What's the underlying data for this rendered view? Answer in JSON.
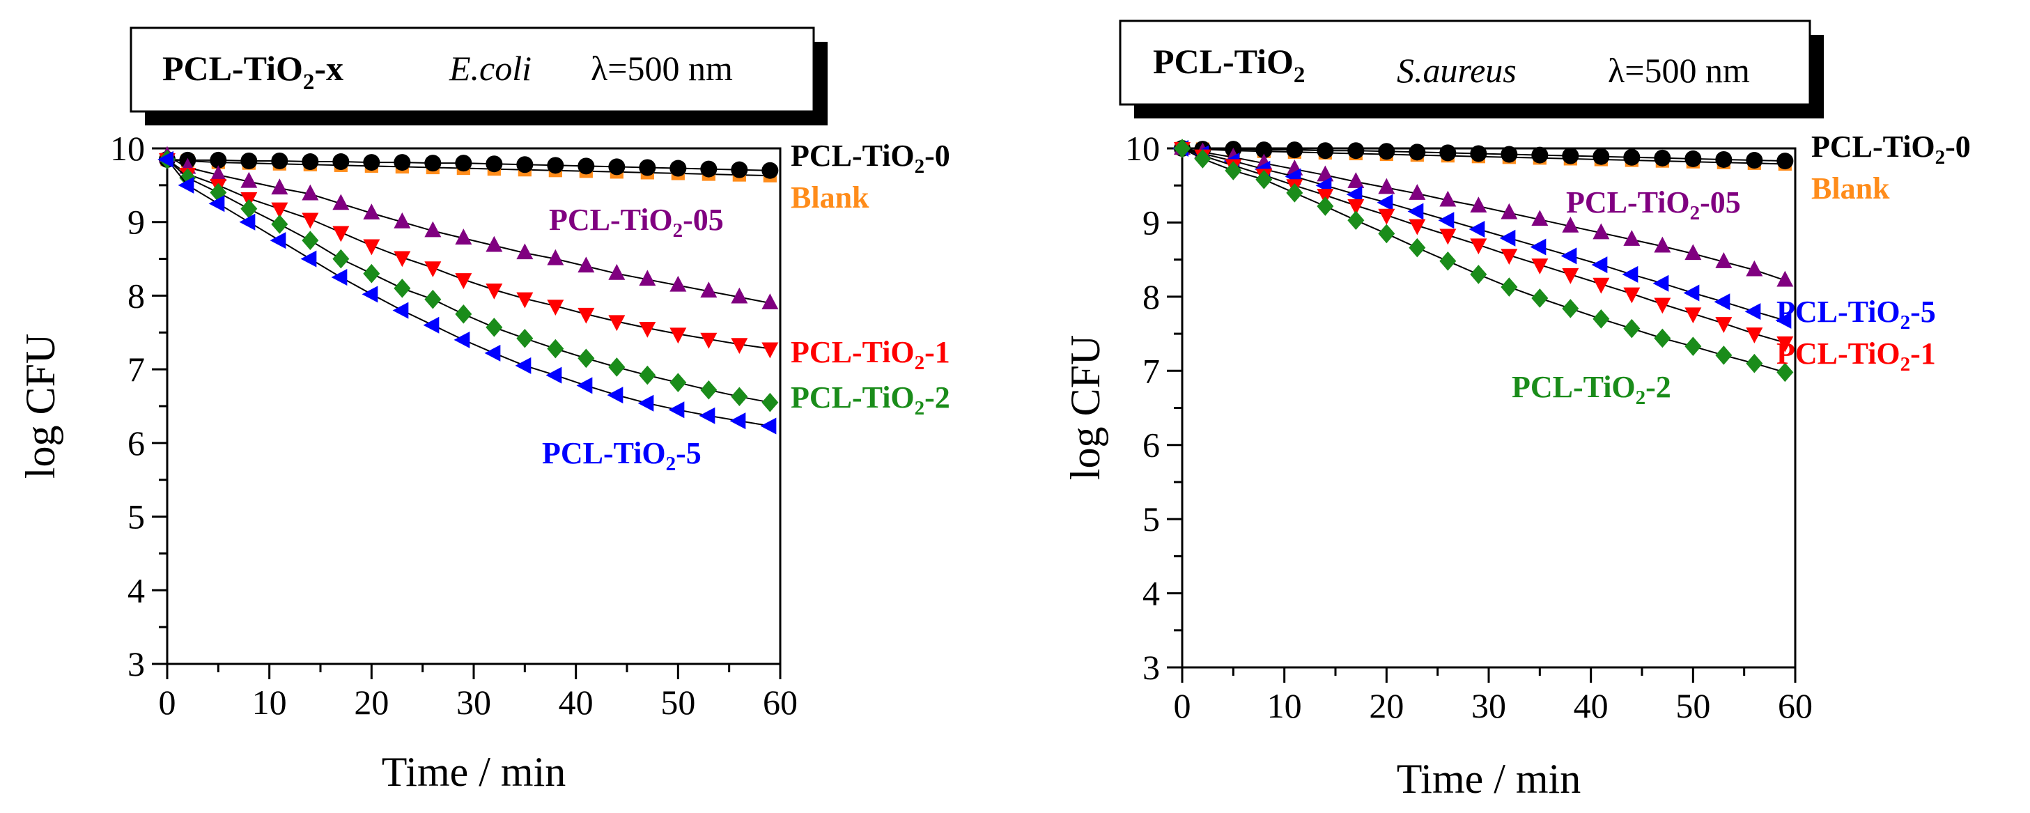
{
  "chart_data": [
    {
      "type": "line",
      "title": "PCL-TiO2-x",
      "title_parts": {
        "name_main": "PCL-TiO",
        "name_sub": "2",
        "name_suffix": "-x",
        "organism": "E.coli",
        "wavelength": "λ=500 nm"
      },
      "xlabel": "Time / min",
      "ylabel": "log CFU",
      "xlim": [
        0,
        60
      ],
      "ylim": [
        3,
        10
      ],
      "x_ticks": [
        "0",
        "10",
        "20",
        "30",
        "40",
        "50",
        "60"
      ],
      "y_ticks": [
        "3",
        "4",
        "5",
        "6",
        "7",
        "8",
        "9",
        "10"
      ],
      "x": [
        0,
        2,
        5,
        8,
        11,
        14,
        17,
        20,
        23,
        26,
        29,
        32,
        35,
        38,
        41,
        44,
        47,
        50,
        53,
        56,
        59
      ],
      "series": [
        {
          "name": "Blank",
          "label": {
            "main": "Blank",
            "sub": "",
            "suffix": ""
          },
          "color": "#ff8c1a",
          "marker": "square",
          "values": [
            9.85,
            9.83,
            9.81,
            9.8,
            9.79,
            9.78,
            9.77,
            9.76,
            9.75,
            9.74,
            9.73,
            9.72,
            9.71,
            9.7,
            9.69,
            9.68,
            9.67,
            9.66,
            9.65,
            9.64,
            9.63
          ]
        },
        {
          "name": "PCL-TiO2-0",
          "label": {
            "main": "PCL-TiO",
            "sub": "2",
            "suffix": "-0"
          },
          "color": "#000000",
          "marker": "circle",
          "values": [
            9.85,
            9.84,
            9.84,
            9.83,
            9.83,
            9.82,
            9.82,
            9.81,
            9.81,
            9.8,
            9.8,
            9.79,
            9.78,
            9.77,
            9.76,
            9.75,
            9.74,
            9.73,
            9.72,
            9.71,
            9.7
          ]
        },
        {
          "name": "PCL-TiO2-05",
          "label": {
            "main": "PCL-TiO",
            "sub": "2",
            "suffix": "-05"
          },
          "color": "#800080",
          "marker": "triangle-up",
          "values": [
            9.9,
            9.74,
            9.64,
            9.55,
            9.46,
            9.38,
            9.25,
            9.12,
            9.0,
            8.88,
            8.78,
            8.68,
            8.58,
            8.5,
            8.4,
            8.3,
            8.22,
            8.14,
            8.06,
            7.98,
            7.9
          ]
        },
        {
          "name": "PCL-TiO2-1",
          "label": {
            "main": "PCL-TiO",
            "sub": "2",
            "suffix": "-1"
          },
          "color": "#ff0000",
          "marker": "triangle-down",
          "values": [
            9.85,
            9.65,
            9.5,
            9.32,
            9.18,
            9.04,
            8.86,
            8.68,
            8.52,
            8.38,
            8.22,
            8.08,
            7.96,
            7.86,
            7.75,
            7.65,
            7.56,
            7.48,
            7.41,
            7.34,
            7.28
          ]
        },
        {
          "name": "PCL-TiO2-2",
          "label": {
            "main": "PCL-TiO",
            "sub": "2",
            "suffix": "-2"
          },
          "color": "#1a8c1a",
          "marker": "diamond",
          "values": [
            9.85,
            9.6,
            9.4,
            9.18,
            8.97,
            8.75,
            8.5,
            8.3,
            8.1,
            7.95,
            7.75,
            7.57,
            7.42,
            7.28,
            7.15,
            7.03,
            6.92,
            6.82,
            6.72,
            6.63,
            6.55
          ]
        },
        {
          "name": "PCL-TiO2-5",
          "label": {
            "main": "PCL-TiO",
            "sub": "2",
            "suffix": "-5"
          },
          "color": "#0000ff",
          "marker": "triangle-left",
          "values": [
            9.85,
            9.5,
            9.25,
            9.0,
            8.75,
            8.5,
            8.25,
            8.02,
            7.8,
            7.6,
            7.4,
            7.22,
            7.05,
            6.92,
            6.78,
            6.65,
            6.54,
            6.45,
            6.37,
            6.3,
            6.23
          ]
        }
      ]
    },
    {
      "type": "line",
      "title": "PCL-TiO2",
      "title_parts": {
        "name_main": "PCL-TiO",
        "name_sub": "2",
        "name_suffix": "",
        "organism": "S.aureus",
        "wavelength": "λ=500 nm"
      },
      "xlabel": "Time / min",
      "ylabel": "log CFU",
      "xlim": [
        0,
        60
      ],
      "ylim": [
        3,
        10
      ],
      "x_ticks": [
        "0",
        "10",
        "20",
        "30",
        "40",
        "50",
        "60"
      ],
      "y_ticks": [
        "3",
        "4",
        "5",
        "6",
        "7",
        "8",
        "9",
        "10"
      ],
      "x": [
        0,
        2,
        5,
        8,
        11,
        14,
        17,
        20,
        23,
        26,
        29,
        32,
        35,
        38,
        41,
        44,
        47,
        50,
        53,
        56,
        59
      ],
      "series": [
        {
          "name": "Blank",
          "label": {
            "main": "Blank",
            "sub": "",
            "suffix": ""
          },
          "color": "#ff8c1a",
          "marker": "square",
          "values": [
            10.0,
            9.99,
            9.97,
            9.96,
            9.95,
            9.94,
            9.93,
            9.92,
            9.91,
            9.9,
            9.89,
            9.88,
            9.87,
            9.86,
            9.85,
            9.84,
            9.83,
            9.82,
            9.81,
            9.8,
            9.79
          ]
        },
        {
          "name": "PCL-TiO2-0",
          "label": {
            "main": "PCL-TiO",
            "sub": "2",
            "suffix": "-0"
          },
          "color": "#000000",
          "marker": "circle",
          "values": [
            10.0,
            9.99,
            9.99,
            9.98,
            9.98,
            9.97,
            9.97,
            9.96,
            9.95,
            9.94,
            9.93,
            9.92,
            9.91,
            9.9,
            9.89,
            9.88,
            9.87,
            9.86,
            9.85,
            9.84,
            9.83
          ]
        },
        {
          "name": "PCL-TiO2-05",
          "label": {
            "main": "PCL-TiO",
            "sub": "2",
            "suffix": "-05"
          },
          "color": "#800080",
          "marker": "triangle-up",
          "values": [
            10.0,
            9.95,
            9.88,
            9.8,
            9.72,
            9.64,
            9.55,
            9.47,
            9.39,
            9.3,
            9.22,
            9.13,
            9.04,
            8.95,
            8.86,
            8.77,
            8.68,
            8.58,
            8.47,
            8.36,
            8.22
          ]
        },
        {
          "name": "PCL-TiO2-5",
          "label": {
            "main": "PCL-TiO",
            "sub": "2",
            "suffix": "-5"
          },
          "color": "#0000ff",
          "marker": "triangle-left",
          "values": [
            10.0,
            9.93,
            9.83,
            9.72,
            9.62,
            9.5,
            9.38,
            9.27,
            9.15,
            9.03,
            8.91,
            8.79,
            8.67,
            8.55,
            8.43,
            8.3,
            8.18,
            8.05,
            7.93,
            7.8,
            7.68
          ]
        },
        {
          "name": "PCL-TiO2-1",
          "label": {
            "main": "PCL-TiO",
            "sub": "2",
            "suffix": "-1"
          },
          "color": "#ff0000",
          "marker": "triangle-down",
          "values": [
            10.0,
            9.9,
            9.77,
            9.64,
            9.5,
            9.37,
            9.23,
            9.1,
            8.96,
            8.83,
            8.7,
            8.56,
            8.43,
            8.3,
            8.17,
            8.04,
            7.9,
            7.77,
            7.64,
            7.5,
            7.38
          ]
        },
        {
          "name": "PCL-TiO2-2",
          "label": {
            "main": "PCL-TiO",
            "sub": "2",
            "suffix": "-2"
          },
          "color": "#1a8c1a",
          "marker": "diamond",
          "values": [
            10.0,
            9.86,
            9.7,
            9.58,
            9.4,
            9.22,
            9.03,
            8.85,
            8.66,
            8.48,
            8.3,
            8.13,
            7.98,
            7.84,
            7.7,
            7.57,
            7.44,
            7.33,
            7.21,
            7.1,
            6.98
          ]
        }
      ]
    }
  ]
}
